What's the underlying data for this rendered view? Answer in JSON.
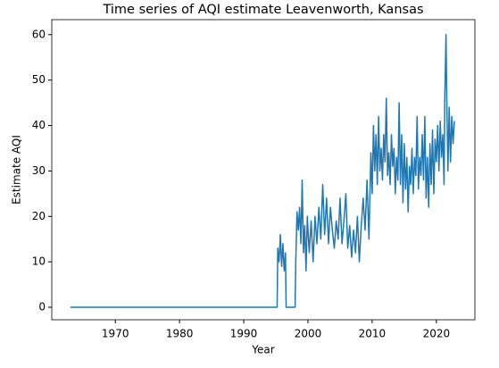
{
  "chart_data": {
    "type": "line",
    "title": "Time series of AQI estimate Leavenworth, Kansas",
    "xlabel": "Year",
    "ylabel": "Estimate AQI",
    "xlim": [
      1960.1,
      2026.0
    ],
    "ylim": [
      -2.75,
      63.3
    ],
    "xticks": [
      1970,
      1980,
      1990,
      2000,
      2010,
      2020
    ],
    "yticks": [
      0,
      10,
      20,
      30,
      40,
      50,
      60
    ],
    "x": [
      1963.0,
      1995.2,
      1995.3,
      1995.5,
      1995.7,
      1995.9,
      1996.1,
      1996.3,
      1996.5,
      1996.6,
      1998.0,
      1998.1,
      1998.3,
      1998.5,
      1998.7,
      1998.9,
      1999.1,
      1999.3,
      1999.5,
      1999.7,
      1999.9,
      2000.2,
      2000.5,
      2000.8,
      2001.1,
      2001.4,
      2001.7,
      2002.0,
      2002.3,
      2002.6,
      2002.9,
      2003.2,
      2003.5,
      2003.8,
      2004.1,
      2004.4,
      2004.7,
      2005.0,
      2005.3,
      2005.6,
      2005.9,
      2006.2,
      2006.5,
      2006.8,
      2007.1,
      2007.4,
      2007.7,
      2008.0,
      2008.3,
      2008.6,
      2008.9,
      2009.2,
      2009.5,
      2009.8,
      2010.0,
      2010.2,
      2010.4,
      2010.6,
      2010.8,
      2011.0,
      2011.2,
      2011.4,
      2011.6,
      2011.8,
      2012.0,
      2012.2,
      2012.4,
      2012.6,
      2012.8,
      2013.0,
      2013.2,
      2013.4,
      2013.6,
      2013.8,
      2014.0,
      2014.2,
      2014.4,
      2014.6,
      2014.8,
      2015.0,
      2015.2,
      2015.4,
      2015.6,
      2015.8,
      2016.0,
      2016.2,
      2016.4,
      2016.6,
      2016.8,
      2017.0,
      2017.2,
      2017.4,
      2017.6,
      2017.8,
      2018.0,
      2018.2,
      2018.4,
      2018.6,
      2018.8,
      2019.0,
      2019.2,
      2019.4,
      2019.6,
      2019.8,
      2020.0,
      2020.2,
      2020.4,
      2020.6,
      2020.8,
      2021.0,
      2021.2,
      2021.3,
      2021.5,
      2021.6,
      2021.8,
      2022.0,
      2022.2,
      2022.4,
      2022.6,
      2022.8
    ],
    "series": [
      {
        "color": "#1f77b4",
        "values": [
          0,
          0,
          13,
          10,
          16,
          9,
          14,
          8,
          12,
          0,
          0,
          10,
          21,
          17,
          22,
          14,
          28,
          12,
          18,
          8,
          20,
          12,
          19,
          10,
          20,
          14,
          22,
          15,
          27,
          16,
          24,
          14,
          22,
          17,
          13,
          19,
          15,
          24,
          14,
          19,
          25,
          13,
          18,
          11,
          17,
          12,
          20,
          10,
          18,
          24,
          17,
          28,
          15,
          34,
          25,
          40,
          30,
          38,
          27,
          42,
          30,
          35,
          28,
          38,
          32,
          46,
          29,
          34,
          27,
          38,
          31,
          35,
          25,
          33,
          28,
          45,
          27,
          38,
          23,
          36,
          26,
          33,
          21,
          31,
          27,
          35,
          25,
          33,
          29,
          42,
          26,
          33,
          29,
          38,
          28,
          42,
          24,
          33,
          22,
          36,
          27,
          39,
          25,
          37,
          32,
          40,
          30,
          41,
          33,
          38,
          27,
          45,
          60,
          48,
          30,
          44,
          32,
          42,
          36,
          41
        ]
      }
    ]
  }
}
